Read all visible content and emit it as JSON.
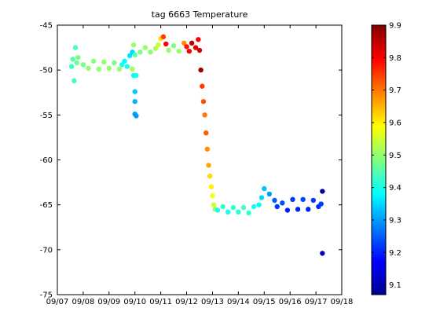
{
  "chart_data": {
    "type": "scatter",
    "title": "tag 6663 Temperature",
    "xlabel": "",
    "ylabel": "",
    "grid": false,
    "x_ticks": [
      "09/07",
      "09/08",
      "09/09",
      "09/10",
      "09/11",
      "09/12",
      "09/13",
      "09/14",
      "09/15",
      "09/16",
      "09/17",
      "09/18"
    ],
    "xlim_days": [
      0,
      11
    ],
    "ylim": [
      -75,
      -45
    ],
    "y_ticks": [
      -75,
      -70,
      -65,
      -60,
      -55,
      -50,
      -45
    ],
    "colorbar": {
      "range": [
        9.07,
        9.9
      ],
      "ticks": [
        9.1,
        9.2,
        9.3,
        9.4,
        9.5,
        9.6,
        9.7,
        9.8,
        9.9
      ],
      "colormap": "jet"
    },
    "series": [
      {
        "points": [
          [
            0.55,
            -49.6,
            9.42
          ],
          [
            0.6,
            -48.8,
            9.45
          ],
          [
            0.65,
            -51.2,
            9.43
          ],
          [
            0.7,
            -47.5,
            9.44
          ],
          [
            0.75,
            -49.2,
            9.47
          ],
          [
            0.8,
            -48.6,
            9.48
          ],
          [
            1.0,
            -49.4,
            9.48
          ],
          [
            1.2,
            -49.8,
            9.5
          ],
          [
            1.4,
            -49.0,
            9.49
          ],
          [
            1.6,
            -49.9,
            9.5
          ],
          [
            1.8,
            -49.1,
            9.5
          ],
          [
            2.0,
            -49.8,
            9.5
          ],
          [
            2.2,
            -49.2,
            9.48
          ],
          [
            2.4,
            -49.9,
            9.5
          ],
          [
            2.5,
            -49.4,
            9.4
          ],
          [
            2.6,
            -49.0,
            9.38
          ],
          [
            2.7,
            -49.6,
            9.4
          ],
          [
            2.8,
            -48.4,
            9.36
          ],
          [
            2.9,
            -48.0,
            9.35
          ],
          [
            2.95,
            -47.2,
            9.5
          ],
          [
            3.0,
            -48.3,
            9.45
          ],
          [
            2.9,
            -49.9,
            9.52
          ],
          [
            2.95,
            -50.6,
            9.38
          ],
          [
            3.0,
            -52.4,
            9.34
          ],
          [
            3.05,
            -55.1,
            9.3
          ],
          [
            3.0,
            -53.5,
            9.32
          ],
          [
            3.0,
            -54.9,
            9.3
          ],
          [
            3.05,
            -50.6,
            9.4
          ],
          [
            3.2,
            -48.0,
            9.48
          ],
          [
            3.4,
            -47.5,
            9.5
          ],
          [
            3.6,
            -48.0,
            9.49
          ],
          [
            3.8,
            -47.6,
            9.52
          ],
          [
            3.9,
            -47.2,
            9.55
          ],
          [
            4.0,
            -46.5,
            9.62
          ],
          [
            4.1,
            -46.3,
            9.75
          ],
          [
            4.2,
            -47.1,
            9.8
          ],
          [
            4.3,
            -47.8,
            9.5
          ],
          [
            4.5,
            -47.3,
            9.48
          ],
          [
            4.7,
            -47.9,
            9.5
          ],
          [
            4.9,
            -47.0,
            9.68
          ],
          [
            5.0,
            -47.4,
            9.78
          ],
          [
            5.1,
            -47.9,
            9.8
          ],
          [
            5.2,
            -47.0,
            9.85
          ],
          [
            5.35,
            -47.5,
            9.82
          ],
          [
            5.45,
            -46.6,
            9.8
          ],
          [
            5.5,
            -47.8,
            9.83
          ],
          [
            5.55,
            -50.0,
            9.88
          ],
          [
            5.6,
            -51.8,
            9.75
          ],
          [
            5.65,
            -53.5,
            9.73
          ],
          [
            5.7,
            -55.0,
            9.7
          ],
          [
            5.75,
            -57.0,
            9.72
          ],
          [
            5.8,
            -58.8,
            9.68
          ],
          [
            5.85,
            -60.6,
            9.66
          ],
          [
            5.9,
            -61.8,
            9.62
          ],
          [
            5.95,
            -63.0,
            9.6
          ],
          [
            6.0,
            -64.0,
            9.58
          ],
          [
            6.05,
            -65.0,
            9.55
          ],
          [
            6.1,
            -65.5,
            9.5
          ],
          [
            6.2,
            -65.6,
            9.4
          ],
          [
            6.4,
            -65.2,
            9.42
          ],
          [
            6.6,
            -65.8,
            9.4
          ],
          [
            6.8,
            -65.3,
            9.42
          ],
          [
            7.0,
            -65.8,
            9.41
          ],
          [
            7.2,
            -65.3,
            9.43
          ],
          [
            7.4,
            -65.9,
            9.42
          ],
          [
            7.6,
            -65.2,
            9.4
          ],
          [
            7.8,
            -65.0,
            9.38
          ],
          [
            7.9,
            -64.2,
            9.35
          ],
          [
            8.0,
            -63.2,
            9.33
          ],
          [
            8.2,
            -63.8,
            9.3
          ],
          [
            8.4,
            -64.5,
            9.25
          ],
          [
            8.5,
            -65.2,
            9.22
          ],
          [
            8.7,
            -64.8,
            9.24
          ],
          [
            8.9,
            -65.6,
            9.2
          ],
          [
            9.1,
            -64.4,
            9.22
          ],
          [
            9.3,
            -65.5,
            9.2
          ],
          [
            9.5,
            -64.4,
            9.23
          ],
          [
            9.7,
            -65.5,
            9.2
          ],
          [
            9.9,
            -64.5,
            9.22
          ],
          [
            10.1,
            -65.2,
            9.21
          ],
          [
            10.2,
            -64.9,
            9.22
          ],
          [
            10.25,
            -63.5,
            9.1
          ],
          [
            10.25,
            -70.4,
            9.12
          ]
        ]
      }
    ]
  }
}
